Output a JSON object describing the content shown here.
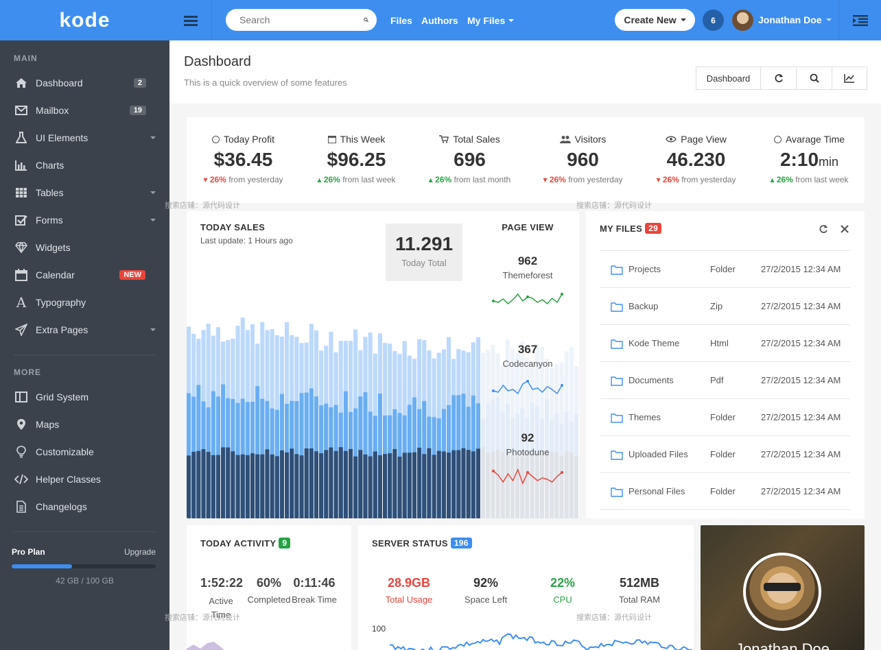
{
  "brand": "kode",
  "sidebar": {
    "main_heading": "MAIN",
    "items": [
      {
        "label": "Dashboard",
        "badge": "2"
      },
      {
        "label": "Mailbox",
        "badge": "19"
      },
      {
        "label": "UI Elements"
      },
      {
        "label": "Charts"
      },
      {
        "label": "Tables"
      },
      {
        "label": "Forms"
      },
      {
        "label": "Widgets"
      },
      {
        "label": "Calendar",
        "badge": "NEW"
      },
      {
        "label": "Typography"
      },
      {
        "label": "Extra Pages"
      }
    ],
    "more_heading": "MORE",
    "more_items": [
      {
        "label": "Grid System"
      },
      {
        "label": "Maps"
      },
      {
        "label": "Customizable"
      },
      {
        "label": "Helper Classes"
      },
      {
        "label": "Changelogs"
      }
    ],
    "plan": {
      "name": "Pro Plan",
      "upgrade": "Upgrade",
      "usage": "42 GB / 100 GB",
      "progress": 0.42
    }
  },
  "topbar": {
    "search_placeholder": "Search",
    "links": [
      "Files",
      "Authors",
      "My Files"
    ],
    "create": "Create New",
    "notifications": "6",
    "user": "Jonathan Doe"
  },
  "page": {
    "title": "Dashboard",
    "subtitle": "This is a quick overview of some features",
    "toolbar_label": "Dashboard"
  },
  "stats": [
    {
      "label": "Today Profit",
      "value": "$36.45",
      "pct": "26%",
      "note": "from yesterday",
      "dir": "down",
      "color": "#333"
    },
    {
      "label": "This Week",
      "value": "$96.25",
      "pct": "26%",
      "note": "from last week",
      "dir": "up",
      "color": "#333"
    },
    {
      "label": "Total Sales",
      "value": "696",
      "pct": "26%",
      "note": "from last month",
      "dir": "up",
      "color": "#27a243"
    },
    {
      "label": "Visitors",
      "value": "960",
      "pct": "26%",
      "note": "from yesterday",
      "dir": "down",
      "color": "#333"
    },
    {
      "label": "Page View",
      "value": "46.230",
      "pct": "26%",
      "note": "from yesterday",
      "dir": "down",
      "color": "#27a243"
    },
    {
      "label": "Avarage Time",
      "value": "2:10",
      "unit": "min",
      "pct": "26%",
      "note": "from last week",
      "dir": "up",
      "color": "#e8453c"
    }
  ],
  "today_sales": {
    "title": "TODAY SALES",
    "updated": "Last update: 1 Hours ago",
    "total": "11.291",
    "total_label": "Today Total"
  },
  "page_view": {
    "title": "PAGE VIEW",
    "items": [
      {
        "value": "962",
        "name": "Themeforest",
        "color": "#27a243"
      },
      {
        "value": "367",
        "name": "Codecanyon",
        "color": "#3d8eef"
      },
      {
        "value": "92",
        "name": "Photodune",
        "color": "#e8453c"
      }
    ]
  },
  "my_files": {
    "title": "MY FILES",
    "count": "29",
    "rows": [
      {
        "name": "Projects",
        "type": "Folder",
        "date": "27/2/2015 12:34 AM",
        "icon": "folder-icon"
      },
      {
        "name": "Backup",
        "type": "Zip",
        "date": "27/2/2015 12:34 AM",
        "icon": "zip-file-icon"
      },
      {
        "name": "Kode Theme",
        "type": "Html",
        "date": "27/2/2015 12:34 AM",
        "icon": "code-file-icon"
      },
      {
        "name": "Documents",
        "type": "Pdf",
        "date": "27/2/2015 12:34 AM",
        "icon": "pdf-file-icon"
      },
      {
        "name": "Themes",
        "type": "Folder",
        "date": "27/2/2015 12:34 AM",
        "icon": "folder-icon"
      },
      {
        "name": "Uploaded Files",
        "type": "Folder",
        "date": "27/2/2015 12:34 AM",
        "icon": "folder-icon"
      },
      {
        "name": "Personal Files",
        "type": "Folder",
        "date": "27/2/2015 12:34 AM",
        "icon": "folder-icon"
      }
    ]
  },
  "activity": {
    "title": "TODAY ACTIVITY",
    "count": "9",
    "items": [
      {
        "value": "1:52:22",
        "label": "Active Time"
      },
      {
        "value": "60%",
        "label": "Completed"
      },
      {
        "value": "0:11:46",
        "label": "Break Time"
      }
    ]
  },
  "server": {
    "title": "SERVER STATUS",
    "count": "196",
    "items": [
      {
        "value": "28.9GB",
        "label": "Total Usage",
        "color": "#e8453c"
      },
      {
        "value": "92%",
        "label": "Space Left",
        "color": "#333"
      },
      {
        "value": "22%",
        "label": "CPU",
        "color": "#27a243"
      },
      {
        "value": "512MB",
        "label": "Total RAM",
        "color": "#333"
      }
    ],
    "axis_label": "100"
  },
  "profile": {
    "name": "Jonathan Doe"
  },
  "watermark": "搜索店铺：源代码设计",
  "colors": {
    "accent": "#3d8eef",
    "sidebar": "#3b424b",
    "success": "#27a243",
    "danger": "#e8453c"
  }
}
